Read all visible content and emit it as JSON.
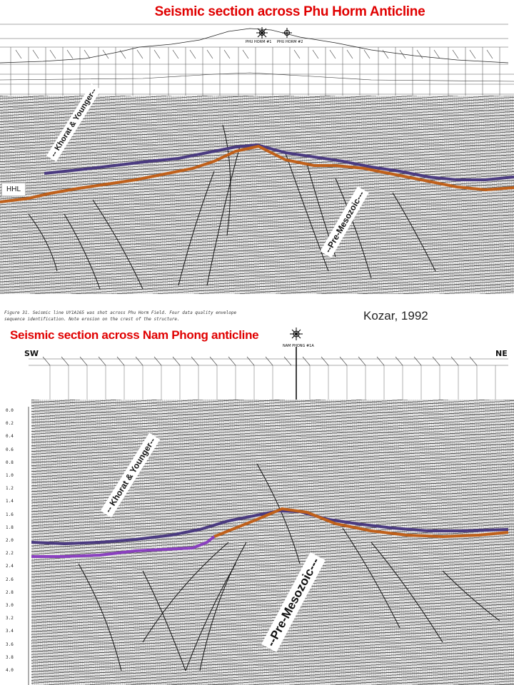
{
  "top_section": {
    "title": "Seismic section across Phu Horm Anticline",
    "wells": [
      "PHU HORM #1",
      "PHU HORM #2"
    ],
    "labels": {
      "khorat": "-- Khorat & Younger--",
      "pre_mesozoic": "--Pre-Mesozoic---",
      "hhl": "HHL"
    },
    "caption_line1": "Figure 31.  Seismic line UY1A165 was shot across Phu Horm Field. Four data quality envelope",
    "caption_line2": "sequence identification. Note erosion on the crest of the structure."
  },
  "credit": "Kozar, 1992",
  "bottom_section": {
    "title": "Seismic section across Nam Phong anticline",
    "well": "NAM PHONG #1A",
    "dir_left": "SW",
    "dir_right": "NE",
    "labels": {
      "khorat": "-- Khorat & Younger--",
      "pre_mesozoic": "--Pre-Mesozoic---"
    },
    "time_axis": [
      "0.0",
      "0.2",
      "0.4",
      "0.6",
      "0.8",
      "1.0",
      "1.2",
      "1.4",
      "1.6",
      "1.8",
      "2.0",
      "2.2",
      "2.4",
      "2.6",
      "2.8",
      "3.0",
      "3.2",
      "3.4",
      "3.6",
      "3.8",
      "4.0"
    ]
  },
  "colors": {
    "title_red": "#e00000",
    "horizon_orange": "#c0601a",
    "horizon_purple": "#4a3a80",
    "horizon_violet": "#8a40c0"
  }
}
